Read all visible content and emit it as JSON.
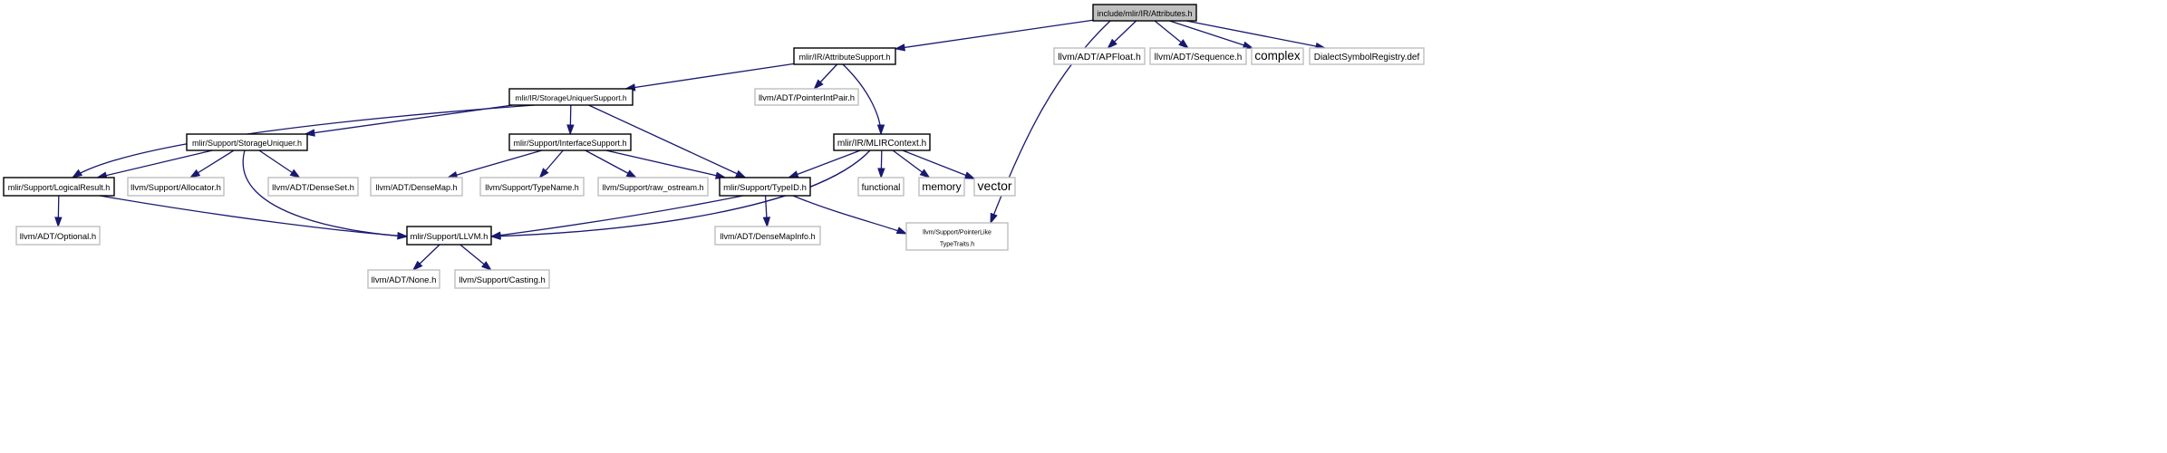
{
  "diagram": {
    "type": "include-dependency-graph",
    "colors": {
      "root_fill": "#bfbfbf",
      "root_border": "#000000",
      "node_fill": "#ffffff",
      "node_border": "#000000",
      "external_border": "#bfbfbf",
      "edge": "#191970"
    },
    "nodes": [
      {
        "id": "attributes",
        "label": "include/mlir/IR/Attributes.h",
        "kind": "root"
      },
      {
        "id": "attributesupport",
        "label": "mlir/IR/AttributeSupport.h",
        "kind": "internal"
      },
      {
        "id": "apfloat",
        "label": "llvm/ADT/APFloat.h",
        "kind": "external"
      },
      {
        "id": "sequence",
        "label": "llvm/ADT/Sequence.h",
        "kind": "external"
      },
      {
        "id": "complex",
        "label": "complex",
        "kind": "external"
      },
      {
        "id": "dialectsymbolregistry",
        "label": "DialectSymbolRegistry.def",
        "kind": "external"
      },
      {
        "id": "storageuniquersupport",
        "label": "mlir/IR/StorageUniquerSupport.h",
        "kind": "internal"
      },
      {
        "id": "pointerintpair",
        "label": "llvm/ADT/PointerIntPair.h",
        "kind": "external"
      },
      {
        "id": "mlircontext",
        "label": "mlir/IR/MLIRContext.h",
        "kind": "internal"
      },
      {
        "id": "storageuniquer",
        "label": "mlir/Support/StorageUniquer.h",
        "kind": "internal"
      },
      {
        "id": "interfacesupport",
        "label": "mlir/Support/InterfaceSupport.h",
        "kind": "internal"
      },
      {
        "id": "functional",
        "label": "functional",
        "kind": "external"
      },
      {
        "id": "memory",
        "label": "memory",
        "kind": "external"
      },
      {
        "id": "vector",
        "label": "vector",
        "kind": "external"
      },
      {
        "id": "logicalresult",
        "label": "mlir/Support/LogicalResult.h",
        "kind": "internal"
      },
      {
        "id": "allocator",
        "label": "llvm/Support/Allocator.h",
        "kind": "external"
      },
      {
        "id": "denseset",
        "label": "llvm/ADT/DenseSet.h",
        "kind": "external"
      },
      {
        "id": "densemap",
        "label": "llvm/ADT/DenseMap.h",
        "kind": "external"
      },
      {
        "id": "typename",
        "label": "llvm/Support/TypeName.h",
        "kind": "external"
      },
      {
        "id": "rawostream",
        "label": "llvm/Support/raw_ostream.h",
        "kind": "external"
      },
      {
        "id": "typeid",
        "label": "mlir/Support/TypeID.h",
        "kind": "internal"
      },
      {
        "id": "optional",
        "label": "llvm/ADT/Optional.h",
        "kind": "external"
      },
      {
        "id": "llvm",
        "label": "mlir/Support/LLVM.h",
        "kind": "internal"
      },
      {
        "id": "densemapinfo",
        "label": "llvm/ADT/DenseMapInfo.h",
        "kind": "external"
      },
      {
        "id": "pointerliketypetraits",
        "label": "llvm/Support/PointerLike\nTypeTraits.h",
        "kind": "external"
      },
      {
        "id": "none",
        "label": "llvm/ADT/None.h",
        "kind": "external"
      },
      {
        "id": "casting",
        "label": "llvm/Support/Casting.h",
        "kind": "external"
      }
    ],
    "edges": [
      {
        "from": "attributes",
        "to": "attributesupport"
      },
      {
        "from": "attributes",
        "to": "apfloat"
      },
      {
        "from": "attributes",
        "to": "sequence"
      },
      {
        "from": "attributes",
        "to": "complex"
      },
      {
        "from": "attributes",
        "to": "dialectsymbolregistry"
      },
      {
        "from": "attributes",
        "to": "pointerliketypetraits"
      },
      {
        "from": "attributesupport",
        "to": "storageuniquersupport"
      },
      {
        "from": "attributesupport",
        "to": "pointerintpair"
      },
      {
        "from": "attributesupport",
        "to": "mlircontext"
      },
      {
        "from": "storageuniquersupport",
        "to": "storageuniquer"
      },
      {
        "from": "storageuniquersupport",
        "to": "interfacesupport"
      },
      {
        "from": "storageuniquersupport",
        "to": "typeid"
      },
      {
        "from": "storageuniquersupport",
        "to": "logicalresult"
      },
      {
        "from": "storageuniquer",
        "to": "logicalresult"
      },
      {
        "from": "storageuniquer",
        "to": "allocator"
      },
      {
        "from": "storageuniquer",
        "to": "denseset"
      },
      {
        "from": "storageuniquer",
        "to": "llvm"
      },
      {
        "from": "interfacesupport",
        "to": "densemap"
      },
      {
        "from": "interfacesupport",
        "to": "typename"
      },
      {
        "from": "interfacesupport",
        "to": "rawostream"
      },
      {
        "from": "interfacesupport",
        "to": "typeid"
      },
      {
        "from": "mlircontext",
        "to": "typeid"
      },
      {
        "from": "mlircontext",
        "to": "functional"
      },
      {
        "from": "mlircontext",
        "to": "memory"
      },
      {
        "from": "mlircontext",
        "to": "vector"
      },
      {
        "from": "mlircontext",
        "to": "llvm"
      },
      {
        "from": "logicalresult",
        "to": "optional"
      },
      {
        "from": "logicalresult",
        "to": "llvm"
      },
      {
        "from": "typeid",
        "to": "llvm"
      },
      {
        "from": "typeid",
        "to": "densemapinfo"
      },
      {
        "from": "typeid",
        "to": "pointerliketypetraits"
      },
      {
        "from": "llvm",
        "to": "none"
      },
      {
        "from": "llvm",
        "to": "casting"
      }
    ]
  }
}
